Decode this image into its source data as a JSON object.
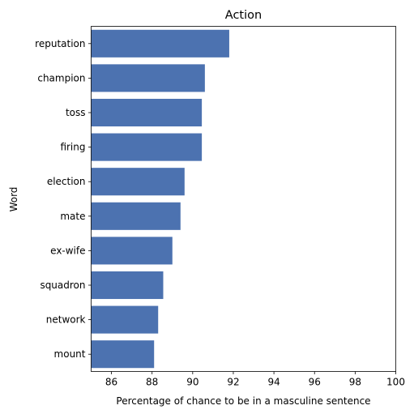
{
  "chart_data": {
    "type": "bar",
    "orientation": "horizontal",
    "title": "Action",
    "xlabel": "Percentage of chance to be in a masculine sentence",
    "ylabel": "Word",
    "xlim": [
      85,
      100
    ],
    "xticks": [
      86,
      88,
      90,
      92,
      94,
      96,
      98,
      100
    ],
    "grid": false,
    "legend": "none",
    "bar_color": "#4c72b0",
    "categories": [
      "reputation",
      "champion",
      "toss",
      "firing",
      "election",
      "mate",
      "ex-wife",
      "squadron",
      "network",
      "mount"
    ],
    "values": [
      91.8,
      90.6,
      90.45,
      90.45,
      89.6,
      89.4,
      89.0,
      88.55,
      88.3,
      88.1
    ]
  }
}
